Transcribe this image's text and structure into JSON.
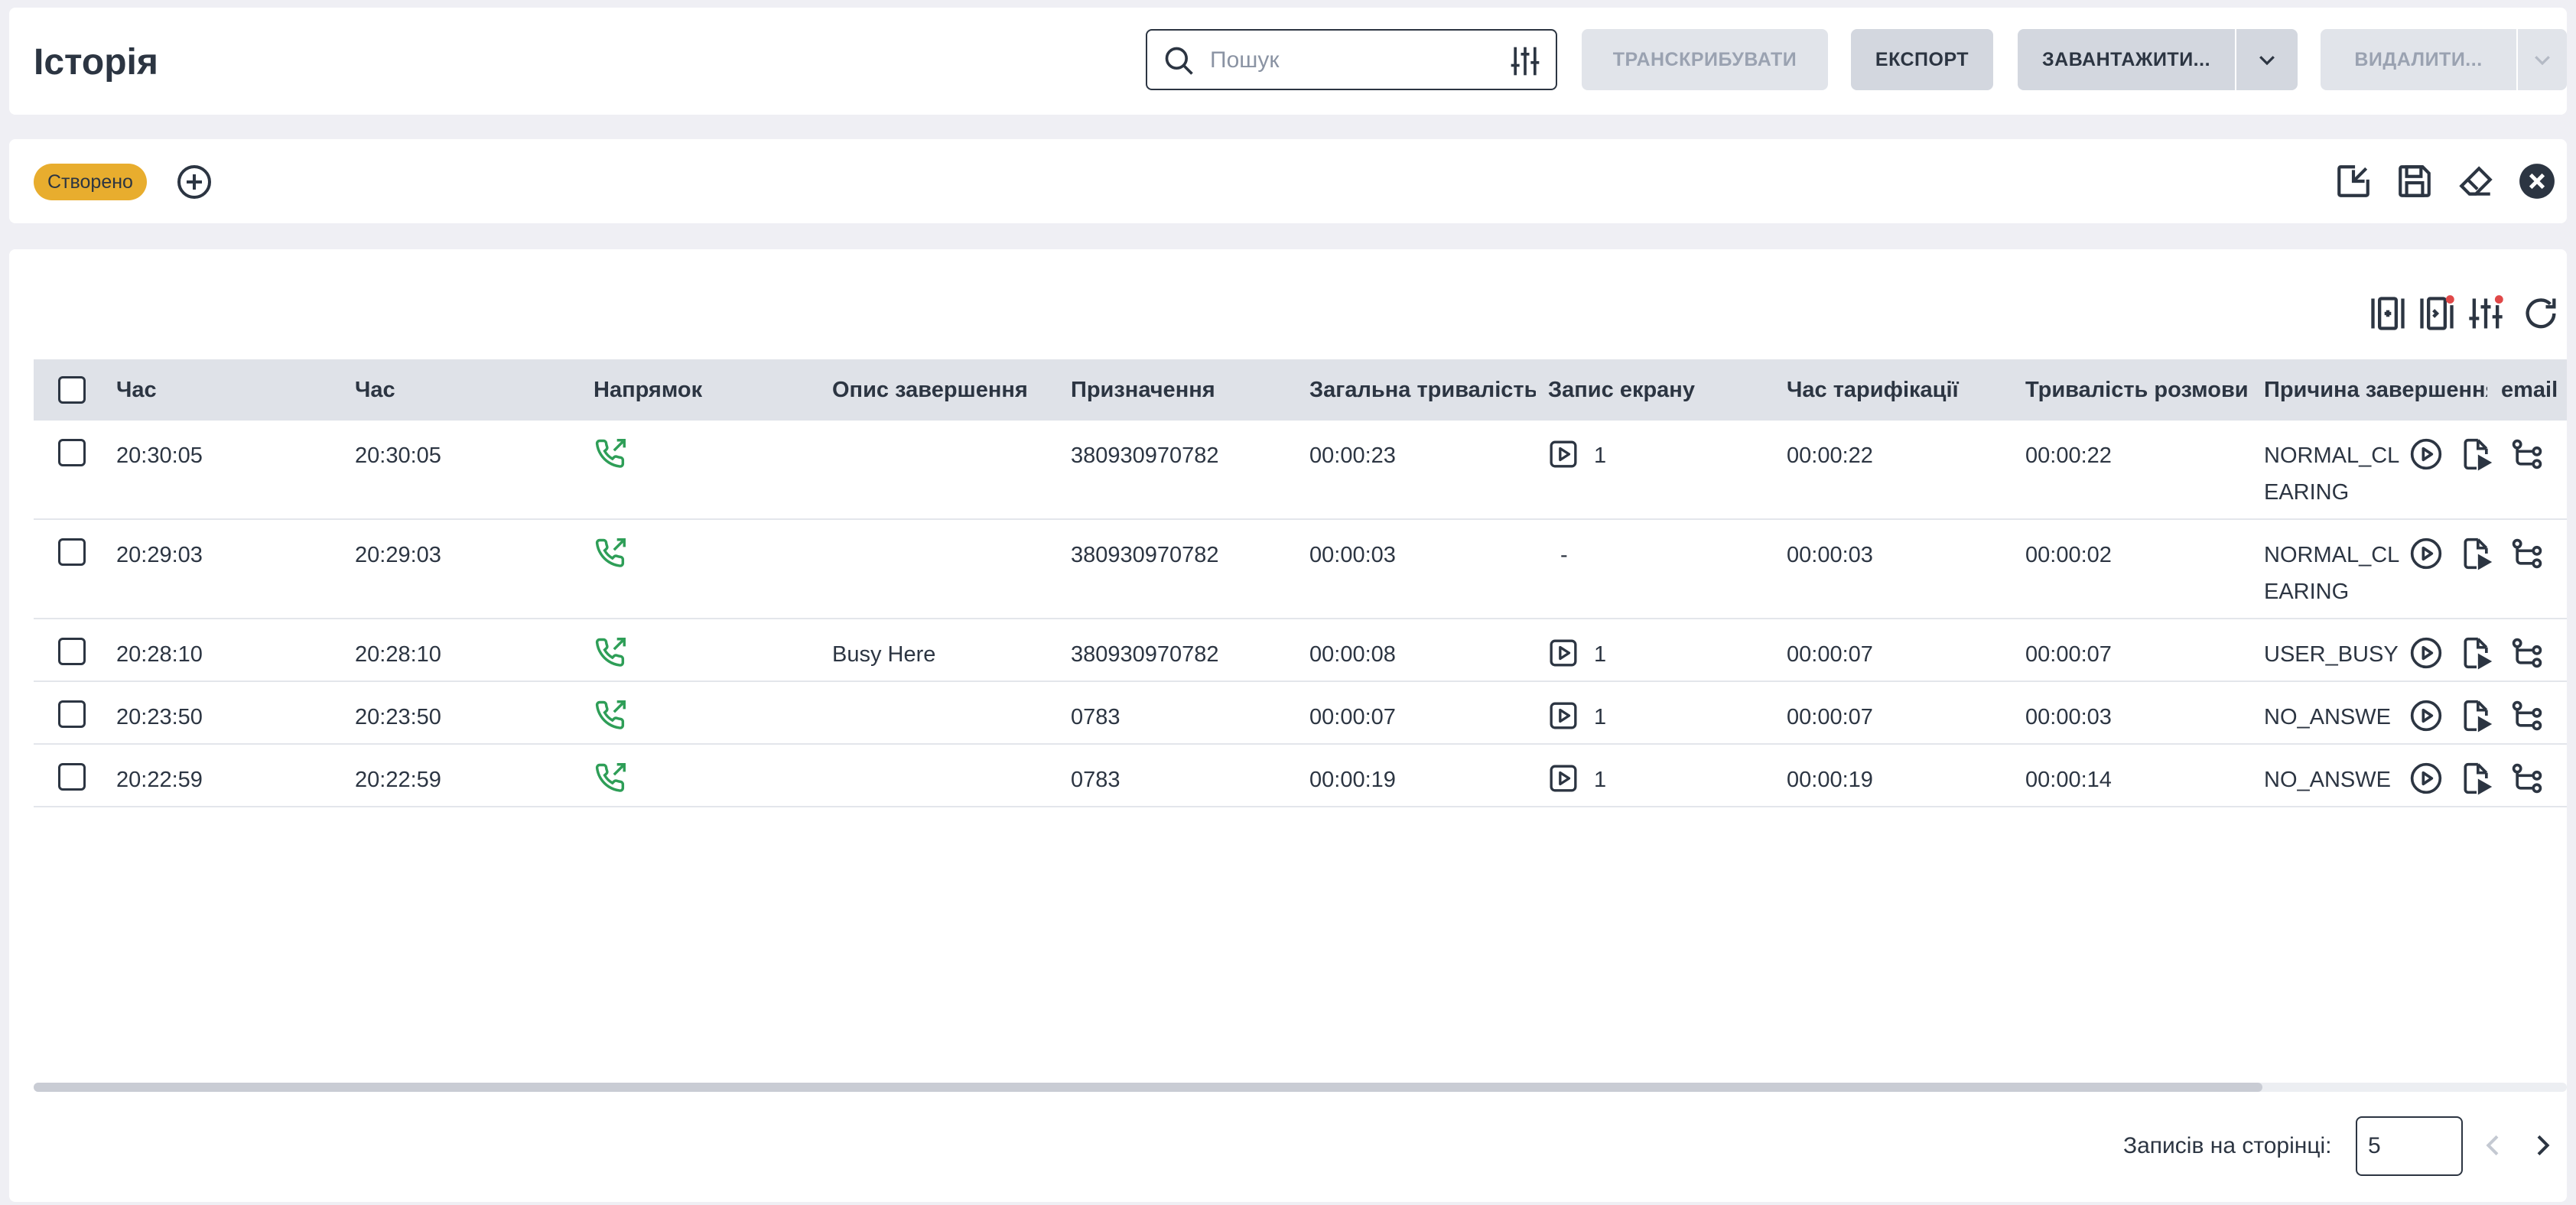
{
  "header": {
    "title": "Історія",
    "search": {
      "placeholder": "Пошук",
      "value": ""
    },
    "buttons": {
      "transcribe": "ТРАНСКРИБУВАТИ",
      "export": "ЕКСПОРТ",
      "download": "ЗАВАНТАЖИТИ...",
      "delete": "ВИДАЛИТИ..."
    }
  },
  "filters": {
    "chips": [
      "Створено"
    ]
  },
  "table": {
    "columns": [
      "Час",
      "Час",
      "Напрямок",
      "Опис завершення",
      "Призначення",
      "Загальна тривалість",
      "Запис екрану",
      "Час тарифікації",
      "Тривалість розмови",
      "Причина завершення",
      "email"
    ],
    "rows": [
      {
        "time1": "20:30:05",
        "time2": "20:30:05",
        "hangup_desc": "",
        "destination": "380930970782",
        "total_duration": "00:00:23",
        "screen_rec": "1",
        "billing_time": "00:00:22",
        "talk_duration": "00:00:22",
        "hangup_cause": "NORMAL_CLEARING"
      },
      {
        "time1": "20:29:03",
        "time2": "20:29:03",
        "hangup_desc": "",
        "destination": "380930970782",
        "total_duration": "00:00:03",
        "screen_rec": "-",
        "billing_time": "00:00:03",
        "talk_duration": "00:00:02",
        "hangup_cause": "NORMAL_CLEARING"
      },
      {
        "time1": "20:28:10",
        "time2": "20:28:10",
        "hangup_desc": "Busy Here",
        "destination": "380930970782",
        "total_duration": "00:00:08",
        "screen_rec": "1",
        "billing_time": "00:00:07",
        "talk_duration": "00:00:07",
        "hangup_cause": "USER_BUSY"
      },
      {
        "time1": "20:23:50",
        "time2": "20:23:50",
        "hangup_desc": "",
        "destination": "0783",
        "total_duration": "00:00:07",
        "screen_rec": "1",
        "billing_time": "00:00:07",
        "talk_duration": "00:00:03",
        "hangup_cause": "NO_ANSWER"
      },
      {
        "time1": "20:22:59",
        "time2": "20:22:59",
        "hangup_desc": "",
        "destination": "0783",
        "total_duration": "00:00:19",
        "screen_rec": "1",
        "billing_time": "00:00:19",
        "talk_duration": "00:00:14",
        "hangup_cause": "NO_ANSWER"
      }
    ]
  },
  "pagination": {
    "label": "Записів на сторінці:",
    "page_size": "5"
  },
  "icons": {
    "direction": "outbound-call-icon",
    "screen_recording": "play-video-icon",
    "row_actions": [
      "play-icon",
      "transcript-file-icon",
      "call-flow-icon"
    ]
  },
  "colors": {
    "accent_chip": "#e8ad2e",
    "outbound_green": "#2e9e57",
    "header_bg": "#dfe2e8"
  }
}
